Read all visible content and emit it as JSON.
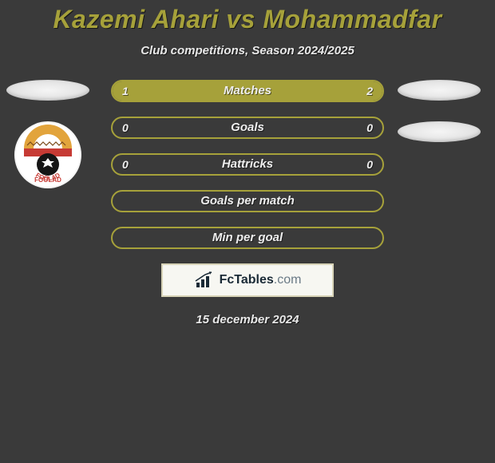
{
  "background_color": "#3a3a3a",
  "title": "Kazemi Ahari vs Mohammadfar",
  "title_color": "#a6a13a",
  "subtitle": "Club competitions, Season 2024/2025",
  "date": "15 december 2024",
  "left_player": {
    "name": "Kazemi Ahari",
    "badge_color": "#f0f0f0",
    "club_badge": {
      "outer_ring": "#ffffff",
      "top_arc": "#e2a43c",
      "mid_band": "#c63a34",
      "ball": "#151515",
      "text": "FOOLAD",
      "text_color": "#c63a34"
    }
  },
  "right_player": {
    "name": "Mohammadfar",
    "badge_color": "#f0f0f0"
  },
  "bars": {
    "border_color": "#a6a13a",
    "left_fill_color": "#a6a13a",
    "right_fill_color": "#a6a13a",
    "text_color": "#eeeeee",
    "rows": [
      {
        "label": "Matches",
        "left": "1",
        "right": "2",
        "left_val": 1,
        "right_val": 2,
        "left_pct": 33.3,
        "right_pct": 66.7
      },
      {
        "label": "Goals",
        "left": "0",
        "right": "0",
        "left_val": 0,
        "right_val": 0,
        "left_pct": 0,
        "right_pct": 0
      },
      {
        "label": "Hattricks",
        "left": "0",
        "right": "0",
        "left_val": 0,
        "right_val": 0,
        "left_pct": 0,
        "right_pct": 0
      },
      {
        "label": "Goals per match",
        "left": "",
        "right": "",
        "left_val": 0,
        "right_val": 0,
        "left_pct": 0,
        "right_pct": 0
      },
      {
        "label": "Min per goal",
        "left": "",
        "right": "",
        "left_val": 0,
        "right_val": 0,
        "left_pct": 0,
        "right_pct": 0
      }
    ]
  },
  "site_logo": {
    "name": "FcTables",
    "domain": ".com",
    "icon_color": "#1a2a36",
    "box_bg": "#f7f7f2",
    "box_border": "#d8d4b8"
  }
}
